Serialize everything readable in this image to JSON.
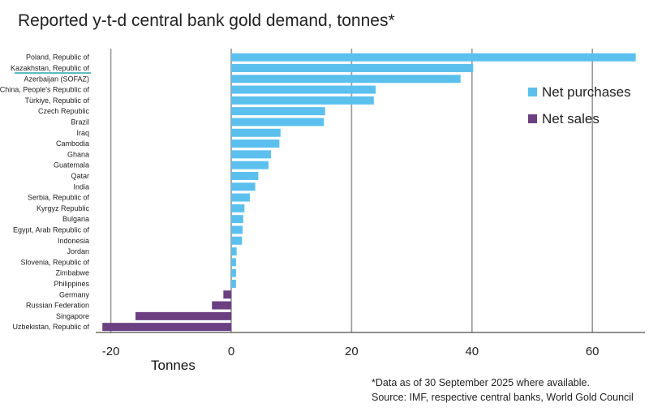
{
  "chart_data": {
    "type": "bar",
    "orientation": "horizontal",
    "title": "Reported y-t-d central bank gold demand, tonnes*",
    "xlabel": "Tonnes",
    "ylabel": "",
    "xlim": [
      -24,
      69
    ],
    "xticks": [
      -20,
      0,
      20,
      40,
      60
    ],
    "xtick_labels": [
      "-20",
      "0",
      "20",
      "40",
      "60"
    ],
    "grid": true,
    "legend_position": "top-right",
    "highlighted_category": "Kazakhstan, Republic of",
    "categories": [
      "Poland, Republic of",
      "Kazakhstan, Republic of",
      "Azerbaijan (SOFAZ)",
      "China, People's Republic of",
      "Türkiye, Republic of",
      "Czech Republic",
      "Brazil",
      "Iraq",
      "Cambodia",
      "Ghana",
      "Guatemala",
      "Qatar",
      "India",
      "Serbia, Republic of",
      "Kyrgyz Republic",
      "Bulgaria",
      "Egypt, Arab Republic of",
      "Indonesia",
      "Jordan",
      "Slovenia, Republic of",
      "Zimbabwe",
      "Philippines",
      "Germany",
      "Russian Federation",
      "Singapore",
      "Uzbekistan, Republic of"
    ],
    "values": [
      67.2,
      40.2,
      38.1,
      24.0,
      23.7,
      15.6,
      15.4,
      8.2,
      8.0,
      6.6,
      6.2,
      4.5,
      4.0,
      3.1,
      2.2,
      2.0,
      1.9,
      1.8,
      0.9,
      0.8,
      0.8,
      0.8,
      -1.3,
      -3.2,
      -15.9,
      -21.4
    ],
    "series": [
      {
        "name": "Net purchases",
        "color": "#5cc0ee"
      },
      {
        "name": "Net sales",
        "color": "#6b3f82"
      }
    ]
  },
  "footnote": "*Data as of 30 September 2025 where available.",
  "source": "Source: IMF, respective central banks, World Gold Council"
}
